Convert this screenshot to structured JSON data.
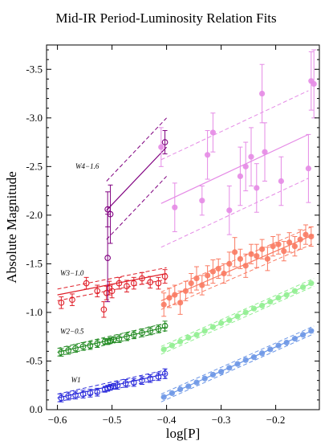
{
  "chart_data": {
    "type": "scatter",
    "title": "Mid-IR Period-Luminosity Relation Fits",
    "xlabel": "log[P]",
    "ylabel": "Absolute Magnitude",
    "xlim": [
      -0.62,
      -0.12
    ],
    "ylim": [
      0.0,
      -3.75
    ],
    "y_axis_inverted": true,
    "grid": false,
    "xticks": [
      -0.6,
      -0.5,
      -0.4,
      -0.3,
      -0.2
    ],
    "xtick_labels": [
      "−0.6",
      "−0.5",
      "−0.4",
      "−0.3",
      "−0.2"
    ],
    "yticks": [
      0.0,
      -0.5,
      -1.0,
      -1.5,
      -2.0,
      -2.5,
      -3.0,
      -3.5
    ],
    "ytick_labels": [
      "0.0",
      "-0.5",
      "-1.0",
      "-1.5",
      "-2.0",
      "-2.5",
      "-3.0",
      "-3.5"
    ],
    "annotations": [
      {
        "text": "W4−1.6",
        "x": -0.567,
        "y": -2.48
      },
      {
        "text": "W3−1.0",
        "x": -0.595,
        "y": -1.38
      },
      {
        "text": "W2−0.5",
        "x": -0.595,
        "y": -0.78
      },
      {
        "text": "W1",
        "x": -0.575,
        "y": -0.28
      }
    ],
    "series": [
      {
        "color": "#2a2adb",
        "marker": "open",
        "fit": {
          "x": [
            -0.6,
            -0.4
          ],
          "y": [
            -0.12,
            -0.37
          ],
          "band": 0.04
        },
        "points": [
          {
            "x": -0.593,
            "y": -0.12,
            "err": 0.04
          },
          {
            "x": -0.58,
            "y": -0.14,
            "err": 0.04
          },
          {
            "x": -0.567,
            "y": -0.15,
            "err": 0.04
          },
          {
            "x": -0.553,
            "y": -0.16,
            "err": 0.04
          },
          {
            "x": -0.54,
            "y": -0.17,
            "err": 0.04
          },
          {
            "x": -0.527,
            "y": -0.18,
            "err": 0.04
          },
          {
            "x": -0.513,
            "y": -0.21,
            "err": 0.03
          },
          {
            "x": -0.508,
            "y": -0.22,
            "err": 0.03
          },
          {
            "x": -0.503,
            "y": -0.23,
            "err": 0.03
          },
          {
            "x": -0.497,
            "y": -0.24,
            "err": 0.03
          },
          {
            "x": -0.49,
            "y": -0.25,
            "err": 0.04
          },
          {
            "x": -0.475,
            "y": -0.27,
            "err": 0.04
          },
          {
            "x": -0.46,
            "y": -0.28,
            "err": 0.04
          },
          {
            "x": -0.445,
            "y": -0.3,
            "err": 0.04
          },
          {
            "x": -0.43,
            "y": -0.32,
            "err": 0.04
          },
          {
            "x": -0.415,
            "y": -0.34,
            "err": 0.04
          },
          {
            "x": -0.403,
            "y": -0.37,
            "err": 0.05
          }
        ]
      },
      {
        "color": "#6b96e6",
        "marker": "filled",
        "fit": {
          "x": [
            -0.41,
            -0.13
          ],
          "y": [
            -0.12,
            -0.82
          ],
          "band": 0.04
        },
        "points": [
          {
            "x": -0.405,
            "y": -0.13
          },
          {
            "x": -0.39,
            "y": -0.17
          },
          {
            "x": -0.375,
            "y": -0.21
          },
          {
            "x": -0.36,
            "y": -0.24
          },
          {
            "x": -0.345,
            "y": -0.28
          },
          {
            "x": -0.33,
            "y": -0.32
          },
          {
            "x": -0.315,
            "y": -0.36
          },
          {
            "x": -0.3,
            "y": -0.39
          },
          {
            "x": -0.285,
            "y": -0.43
          },
          {
            "x": -0.27,
            "y": -0.47
          },
          {
            "x": -0.255,
            "y": -0.51
          },
          {
            "x": -0.24,
            "y": -0.54
          },
          {
            "x": -0.225,
            "y": -0.58
          },
          {
            "x": -0.21,
            "y": -0.62
          },
          {
            "x": -0.195,
            "y": -0.66
          },
          {
            "x": -0.18,
            "y": -0.69
          },
          {
            "x": -0.165,
            "y": -0.73
          },
          {
            "x": -0.15,
            "y": -0.77
          },
          {
            "x": -0.135,
            "y": -0.81
          }
        ]
      },
      {
        "color": "#228b22",
        "marker": "open",
        "fit": {
          "x": [
            -0.6,
            -0.4
          ],
          "y": [
            -0.59,
            -0.85
          ],
          "band": 0.04
        },
        "points": [
          {
            "x": -0.593,
            "y": -0.59,
            "err": 0.04
          },
          {
            "x": -0.58,
            "y": -0.61,
            "err": 0.04
          },
          {
            "x": -0.567,
            "y": -0.63,
            "err": 0.04
          },
          {
            "x": -0.553,
            "y": -0.65,
            "err": 0.04
          },
          {
            "x": -0.54,
            "y": -0.66,
            "err": 0.04
          },
          {
            "x": -0.527,
            "y": -0.68,
            "err": 0.04
          },
          {
            "x": -0.513,
            "y": -0.7,
            "err": 0.03
          },
          {
            "x": -0.508,
            "y": -0.7,
            "err": 0.03
          },
          {
            "x": -0.503,
            "y": -0.71,
            "err": 0.03
          },
          {
            "x": -0.497,
            "y": -0.72,
            "err": 0.03
          },
          {
            "x": -0.487,
            "y": -0.73,
            "err": 0.04
          },
          {
            "x": -0.473,
            "y": -0.75,
            "err": 0.04
          },
          {
            "x": -0.46,
            "y": -0.77,
            "err": 0.04
          },
          {
            "x": -0.445,
            "y": -0.79,
            "err": 0.04
          },
          {
            "x": -0.43,
            "y": -0.81,
            "err": 0.04
          },
          {
            "x": -0.415,
            "y": -0.83,
            "err": 0.04
          },
          {
            "x": -0.403,
            "y": -0.86,
            "err": 0.05
          }
        ]
      },
      {
        "color": "#90ee90",
        "marker": "filled",
        "fit": {
          "x": [
            -0.41,
            -0.13
          ],
          "y": [
            -0.61,
            -1.31
          ],
          "band": 0.04
        },
        "points": [
          {
            "x": -0.405,
            "y": -0.62
          },
          {
            "x": -0.39,
            "y": -0.66
          },
          {
            "x": -0.375,
            "y": -0.7
          },
          {
            "x": -0.36,
            "y": -0.74
          },
          {
            "x": -0.345,
            "y": -0.77
          },
          {
            "x": -0.33,
            "y": -0.81
          },
          {
            "x": -0.315,
            "y": -0.85
          },
          {
            "x": -0.3,
            "y": -0.89
          },
          {
            "x": -0.285,
            "y": -0.92
          },
          {
            "x": -0.27,
            "y": -0.96
          },
          {
            "x": -0.255,
            "y": -1.0
          },
          {
            "x": -0.24,
            "y": -1.04
          },
          {
            "x": -0.225,
            "y": -1.07
          },
          {
            "x": -0.21,
            "y": -1.11
          },
          {
            "x": -0.195,
            "y": -1.15
          },
          {
            "x": -0.18,
            "y": -1.18
          },
          {
            "x": -0.165,
            "y": -1.22
          },
          {
            "x": -0.15,
            "y": -1.26
          },
          {
            "x": -0.135,
            "y": -1.3
          }
        ]
      },
      {
        "color": "#e0202a",
        "marker": "open",
        "fit": {
          "x": [
            -0.6,
            -0.4
          ],
          "y": [
            -1.18,
            -1.4
          ],
          "band": 0.06
        },
        "points": [
          {
            "x": -0.593,
            "y": -1.1,
            "err": 0.06
          },
          {
            "x": -0.573,
            "y": -1.13,
            "err": 0.06
          },
          {
            "x": -0.547,
            "y": -1.3,
            "err": 0.06
          },
          {
            "x": -0.527,
            "y": -1.22,
            "err": 0.06
          },
          {
            "x": -0.515,
            "y": -1.03,
            "err": 0.08
          },
          {
            "x": -0.51,
            "y": -1.2,
            "err": 0.07
          },
          {
            "x": -0.505,
            "y": -1.25,
            "err": 0.07
          },
          {
            "x": -0.5,
            "y": -1.22,
            "err": 0.07
          },
          {
            "x": -0.487,
            "y": -1.3,
            "err": 0.06
          },
          {
            "x": -0.473,
            "y": -1.27,
            "err": 0.06
          },
          {
            "x": -0.46,
            "y": -1.3,
            "err": 0.06
          },
          {
            "x": -0.445,
            "y": -1.35,
            "err": 0.06
          },
          {
            "x": -0.43,
            "y": -1.31,
            "err": 0.06
          },
          {
            "x": -0.415,
            "y": -1.3,
            "err": 0.06
          },
          {
            "x": -0.403,
            "y": -1.37,
            "err": 0.07
          }
        ]
      },
      {
        "color": "#fa7a62",
        "marker": "filled",
        "fit": {
          "x": [
            -0.41,
            -0.13
          ],
          "y": [
            -1.12,
            -1.8
          ],
          "band": 0.09
        },
        "points": [
          {
            "x": -0.405,
            "y": -1.08,
            "err": 0.12
          },
          {
            "x": -0.395,
            "y": -1.15,
            "err": 0.1
          },
          {
            "x": -0.385,
            "y": -1.18,
            "err": 0.1
          },
          {
            "x": -0.375,
            "y": -1.1,
            "err": 0.12
          },
          {
            "x": -0.365,
            "y": -1.22,
            "err": 0.1
          },
          {
            "x": -0.355,
            "y": -1.3,
            "err": 0.1
          },
          {
            "x": -0.345,
            "y": -1.35,
            "err": 0.12
          },
          {
            "x": -0.335,
            "y": -1.28,
            "err": 0.1
          },
          {
            "x": -0.325,
            "y": -1.38,
            "err": 0.1
          },
          {
            "x": -0.315,
            "y": -1.42,
            "err": 0.12
          },
          {
            "x": -0.305,
            "y": -1.45,
            "err": 0.1
          },
          {
            "x": -0.295,
            "y": -1.4,
            "err": 0.1
          },
          {
            "x": -0.285,
            "y": -1.5,
            "err": 0.12
          },
          {
            "x": -0.275,
            "y": -1.62,
            "err": 0.15
          },
          {
            "x": -0.265,
            "y": -1.55,
            "err": 0.1
          },
          {
            "x": -0.255,
            "y": -1.48,
            "err": 0.12
          },
          {
            "x": -0.245,
            "y": -1.6,
            "err": 0.1
          },
          {
            "x": -0.235,
            "y": -1.58,
            "err": 0.12
          },
          {
            "x": -0.225,
            "y": -1.65,
            "err": 0.1
          },
          {
            "x": -0.215,
            "y": -1.55,
            "err": 0.12
          },
          {
            "x": -0.205,
            "y": -1.68,
            "err": 0.1
          },
          {
            "x": -0.195,
            "y": -1.7,
            "err": 0.1
          },
          {
            "x": -0.185,
            "y": -1.63,
            "err": 0.1
          },
          {
            "x": -0.175,
            "y": -1.72,
            "err": 0.1
          },
          {
            "x": -0.165,
            "y": -1.68,
            "err": 0.1
          },
          {
            "x": -0.155,
            "y": -1.75,
            "err": 0.1
          },
          {
            "x": -0.145,
            "y": -1.8,
            "err": 0.1
          },
          {
            "x": -0.135,
            "y": -1.78,
            "err": 0.1
          }
        ]
      },
      {
        "color": "#800080",
        "marker": "open",
        "fit": {
          "x": [
            -0.51,
            -0.4
          ],
          "y": [
            -2.05,
            -2.7
          ],
          "band": 0.3
        },
        "points": [
          {
            "x": -0.508,
            "y": -2.06,
            "err": 0.18
          },
          {
            "x": -0.503,
            "y": -2.01,
            "err": 0.3
          },
          {
            "x": -0.508,
            "y": -1.56,
            "err": 0.45
          },
          {
            "x": -0.403,
            "y": -2.75,
            "err": 0.12
          }
        ]
      },
      {
        "color": "#e58be6",
        "marker": "filled",
        "fit": {
          "x": [
            -0.41,
            -0.14
          ],
          "y": [
            -2.12,
            -2.83
          ],
          "band": 0.45
        },
        "points": [
          {
            "x": -0.41,
            "y": -2.7,
            "err": 0.2
          },
          {
            "x": -0.385,
            "y": -2.08,
            "err": 0.25
          },
          {
            "x": -0.335,
            "y": -2.15,
            "err": 0.15
          },
          {
            "x": -0.325,
            "y": -2.62,
            "err": 0.25
          },
          {
            "x": -0.315,
            "y": -2.85,
            "err": 0.2
          },
          {
            "x": -0.285,
            "y": -2.05,
            "err": 0.25
          },
          {
            "x": -0.265,
            "y": -2.4,
            "err": 0.3
          },
          {
            "x": -0.255,
            "y": -2.5,
            "err": 0.25
          },
          {
            "x": -0.245,
            "y": -2.6,
            "err": 0.3
          },
          {
            "x": -0.235,
            "y": -2.28,
            "err": 0.25
          },
          {
            "x": -0.225,
            "y": -3.25,
            "err": 0.3
          },
          {
            "x": -0.22,
            "y": -2.65,
            "err": 0.3
          },
          {
            "x": -0.19,
            "y": -2.35,
            "err": 0.25
          },
          {
            "x": -0.14,
            "y": -2.48,
            "err": 0.35
          },
          {
            "x": -0.135,
            "y": -3.38,
            "err": 0.3
          },
          {
            "x": -0.13,
            "y": -3.35,
            "err": 0.35
          }
        ]
      }
    ]
  }
}
